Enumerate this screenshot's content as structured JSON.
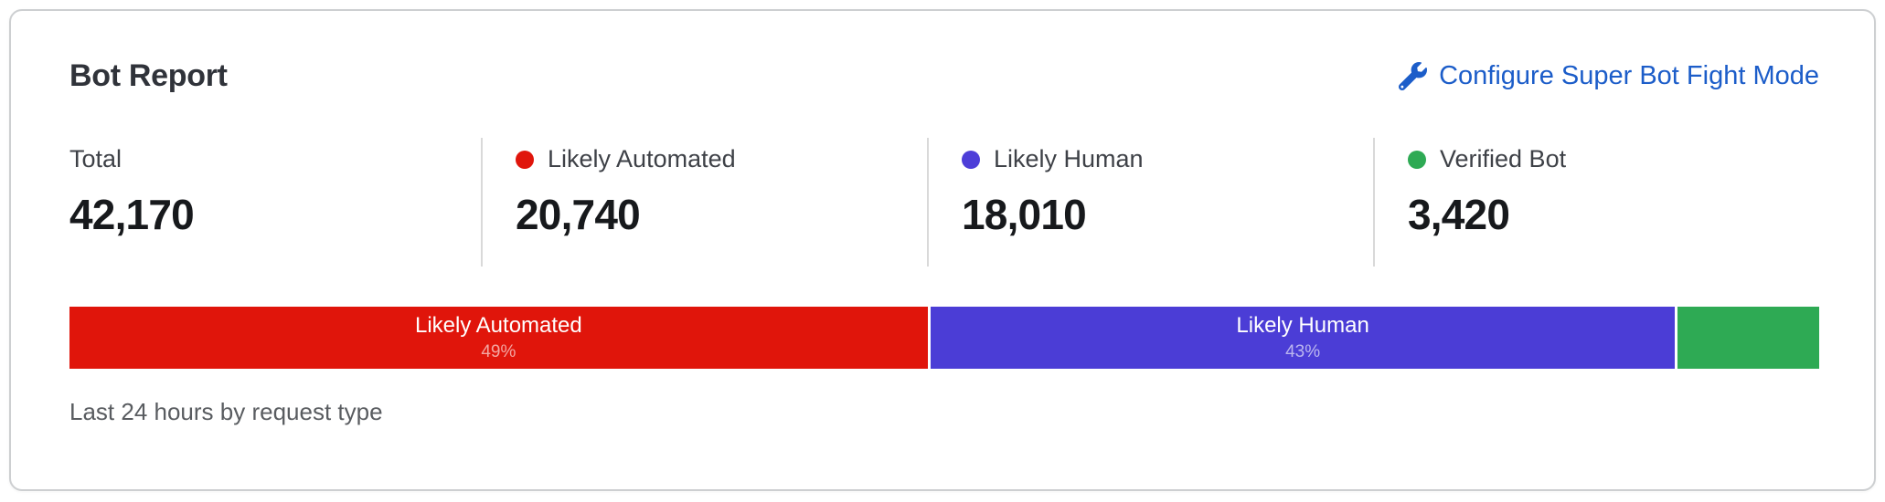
{
  "card": {
    "title": "Bot Report",
    "action_link": {
      "label": "Configure Super Bot Fight Mode",
      "icon": "wrench-icon",
      "color": "#1c5dc9"
    },
    "stats": [
      {
        "label": "Total",
        "value": "42,170",
        "dot_color": null
      },
      {
        "label": "Likely Automated",
        "value": "20,740",
        "dot_color": "#e0150b"
      },
      {
        "label": "Likely Human",
        "value": "18,010",
        "dot_color": "#4d3ed8"
      },
      {
        "label": "Verified Bot",
        "value": "3,420",
        "dot_color": "#2eaa54"
      }
    ],
    "footer": "Last 24 hours by request type"
  },
  "chart_data": {
    "type": "bar",
    "subtype": "stacked-percentage-bar",
    "title": "Bot Report",
    "note": "Last 24 hours by request type",
    "total": 42170,
    "categories": [
      "Likely Automated",
      "Likely Human",
      "Verified Bot"
    ],
    "values": [
      20740,
      18010,
      3420
    ],
    "segments": [
      {
        "name": "Likely Automated",
        "value": 20740,
        "pct": 49.2,
        "pct_label": "49%",
        "color": "#e0150b",
        "show_label": true
      },
      {
        "name": "Likely Human",
        "value": 18010,
        "pct": 42.7,
        "pct_label": "43%",
        "color": "#4b3dd6",
        "show_label": true
      },
      {
        "name": "Verified Bot",
        "value": 3420,
        "pct": 8.1,
        "pct_label": "8%",
        "color": "#2eaa54",
        "show_label": false
      }
    ],
    "legend_position": "above-bar-as-stat-columns",
    "axis": "none"
  }
}
